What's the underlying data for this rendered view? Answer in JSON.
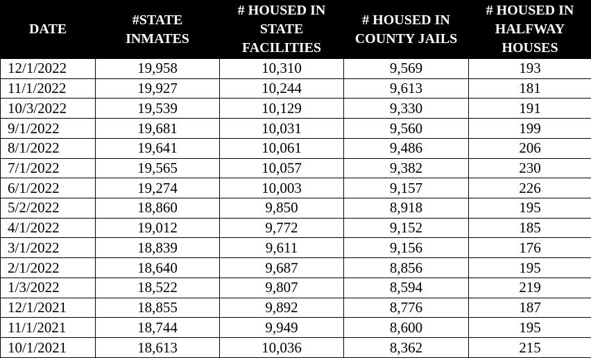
{
  "table": {
    "header": [
      "DATE",
      "#STATE\nINMATES",
      "# HOUSED IN\nSTATE\nFACILITIES",
      "# HOUSED IN\nCOUNTY JAILS",
      "# HOUSED IN\nHALFWAY\nHOUSES"
    ],
    "rows": [
      [
        "12/1/2022",
        "19,958",
        "10,310",
        "9,569",
        "193"
      ],
      [
        "11/1/2022",
        "19,927",
        "10,244",
        "9,613",
        "181"
      ],
      [
        "10/3/2022",
        "19,539",
        "10,129",
        "9,330",
        "191"
      ],
      [
        "9/1/2022",
        "19,681",
        "10,031",
        "9,560",
        "199"
      ],
      [
        "8/1/2022",
        "19,641",
        "10,061",
        "9,486",
        "206"
      ],
      [
        "7/1/2022",
        "19,565",
        "10,057",
        "9,382",
        "230"
      ],
      [
        "6/1/2022",
        "19,274",
        "10,003",
        "9,157",
        "226"
      ],
      [
        "5/2/2022",
        "18,860",
        "9,850",
        "8,918",
        "195"
      ],
      [
        "4/1/2022",
        "19,012",
        "9,772",
        "9,152",
        "185"
      ],
      [
        "3/1/2022",
        "18,839",
        "9,611",
        "9,156",
        "176"
      ],
      [
        "2/1/2022",
        "18,640",
        "9,687",
        "8,856",
        "195"
      ],
      [
        "1/3/2022",
        "18,522",
        "9,807",
        "8,594",
        "219"
      ],
      [
        "12/1/2021",
        "18,855",
        "9,892",
        "8,776",
        "187"
      ],
      [
        "11/1/2021",
        "18,744",
        "9,949",
        "8,600",
        "195"
      ],
      [
        "10/1/2021",
        "18,613",
        "10,036",
        "8,362",
        "215"
      ]
    ]
  }
}
